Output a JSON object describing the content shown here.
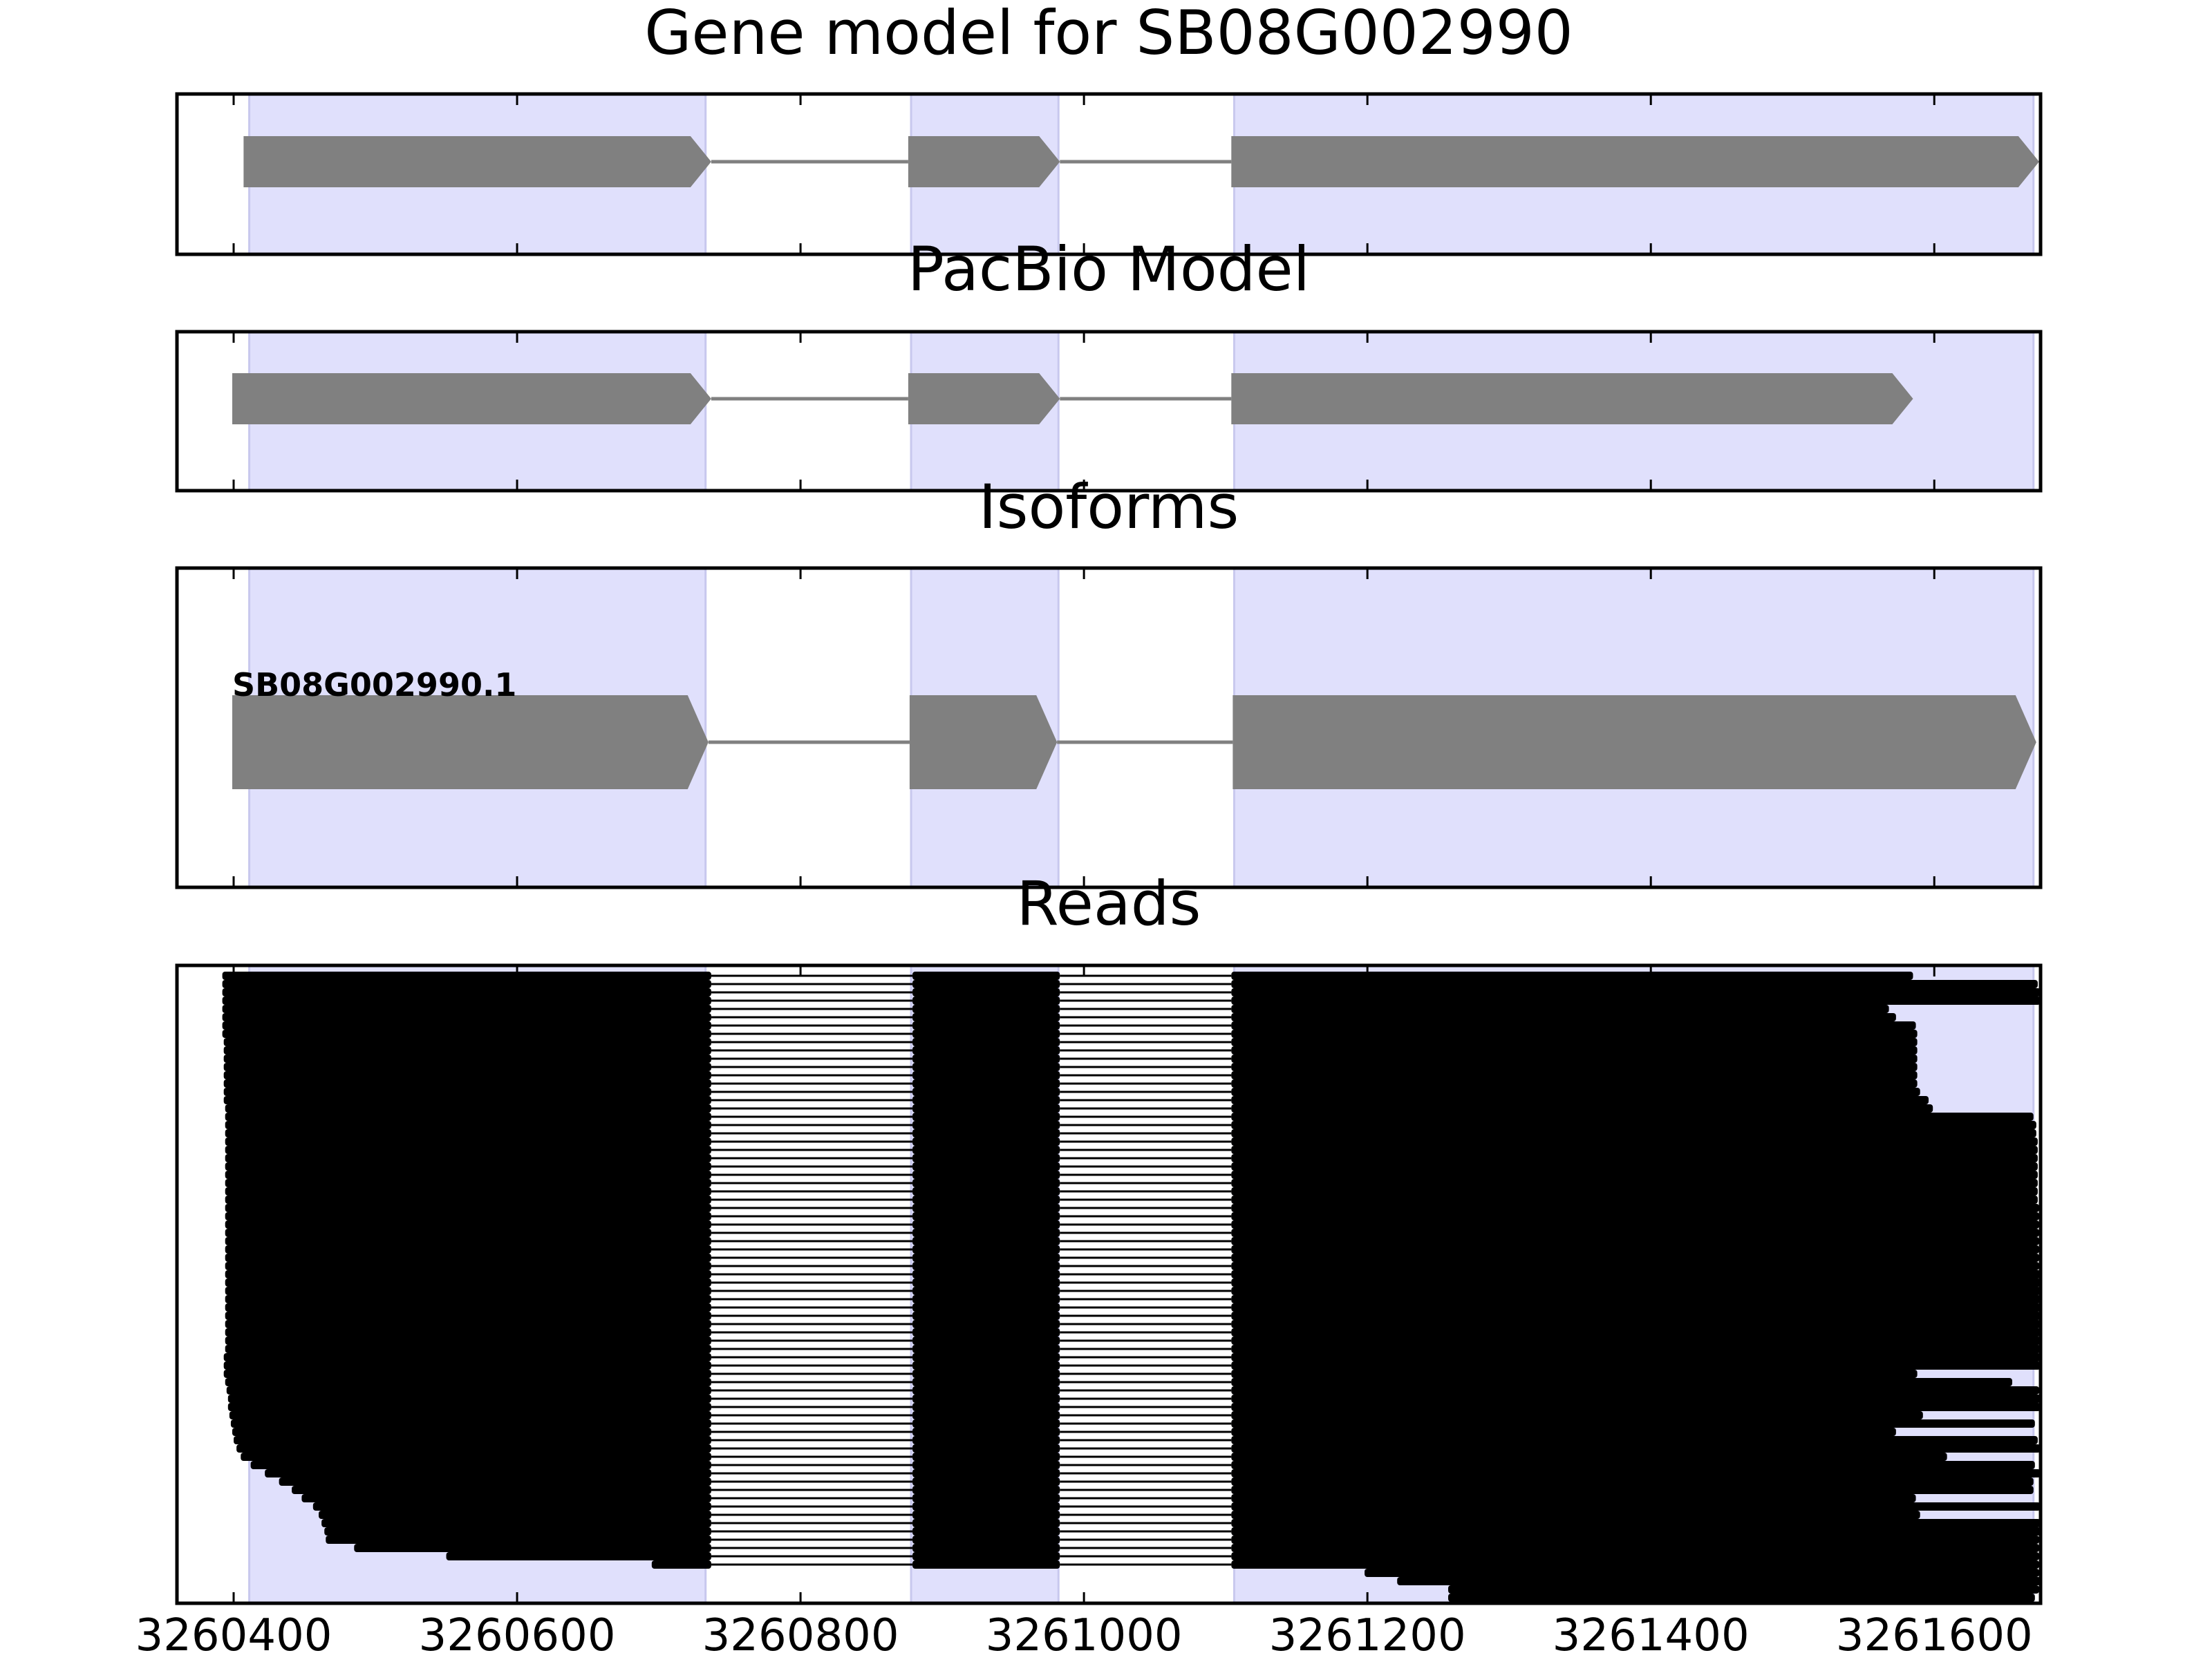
{
  "colors": {
    "exon_band": "#e0e0fc",
    "band_edge": "#c8c8ee",
    "gene_block": "#808080",
    "intron_line": "#808080",
    "read": "#000000",
    "axis": "#000000",
    "background": "#ffffff"
  },
  "chart_data": {
    "type": "gene-model track plot",
    "x_axis": {
      "range": [
        3260360,
        3261675
      ],
      "ticks": [
        3260400,
        3260600,
        3260800,
        3261000,
        3261200,
        3261400,
        3261600
      ],
      "tick_labels": [
        "3260400",
        "3260600",
        "3260800",
        "3261000",
        "3261200",
        "3261400",
        "3261600"
      ]
    },
    "exon_bands": [
      [
        3260411,
        3260733
      ],
      [
        3260878,
        3260982
      ],
      [
        3261106,
        3261670
      ]
    ],
    "panels": [
      {
        "key": "gene_model",
        "title": "Gene model for SB08G002990",
        "features": [
          {
            "start": 3260407,
            "end": 3260737,
            "strand": "+"
          },
          {
            "start": 3260876,
            "end": 3260983,
            "strand": "+"
          },
          {
            "start": 3261104,
            "end": 3261674,
            "strand": "+"
          }
        ]
      },
      {
        "key": "pacbio_model",
        "title": "PacBio Model",
        "features": [
          {
            "start": 3260399,
            "end": 3260737,
            "strand": "+"
          },
          {
            "start": 3260876,
            "end": 3260983,
            "strand": "+"
          },
          {
            "start": 3261104,
            "end": 3261585,
            "strand": "+"
          }
        ]
      },
      {
        "key": "isoforms",
        "title": "Isoforms",
        "isoforms": [
          {
            "name": "SB08G002990.1",
            "features": [
              {
                "start": 3260399,
                "end": 3260735,
                "strand": "+"
              },
              {
                "start": 3260877,
                "end": 3260981,
                "strand": "+"
              },
              {
                "start": 3261105,
                "end": 3261672,
                "strand": "+"
              }
            ]
          }
        ]
      },
      {
        "key": "reads",
        "title": "Reads",
        "reads": {
          "introns": [
            [
              3260737,
              3260879
            ],
            [
              3260983,
              3261104
            ]
          ],
          "starts": [
            3260392,
            3260392,
            3260392,
            3260392,
            3260392,
            3260392,
            3260392,
            3260392,
            3260393,
            3260393,
            3260393,
            3260393,
            3260393,
            3260393,
            3260393,
            3260393,
            3260394,
            3260394,
            3260394,
            3260394,
            3260394,
            3260394,
            3260394,
            3260394,
            3260394,
            3260394,
            3260394,
            3260394,
            3260394,
            3260394,
            3260394,
            3260394,
            3260394,
            3260394,
            3260394,
            3260394,
            3260394,
            3260394,
            3260394,
            3260394,
            3260394,
            3260394,
            3260394,
            3260394,
            3260394,
            3260394,
            3260393,
            3260393,
            3260393,
            3260394,
            3260395,
            3260396,
            3260396,
            3260397,
            3260398,
            3260399,
            3260400,
            3260402,
            3260405,
            3260412,
            3260422,
            3260432,
            3260441,
            3260448,
            3260456,
            3260460,
            3260462,
            3260464,
            3260465,
            3260485,
            3260550,
            3260695
          ],
          "ends": [
            3261585,
            3261673,
            3261675,
            3261675,
            3261568,
            3261573,
            3261587,
            3261588,
            3261588,
            3261588,
            3261588,
            3261588,
            3261588,
            3261588,
            3261590,
            3261596,
            3261599,
            3261670,
            3261672,
            3261672,
            3261673,
            3261673,
            3261673,
            3261673,
            3261673,
            3261673,
            3261673,
            3261673,
            3261674,
            3261674,
            3261674,
            3261674,
            3261674,
            3261674,
            3261674,
            3261674,
            3261675,
            3261675,
            3261675,
            3261675,
            3261675,
            3261675,
            3261675,
            3261675,
            3261675,
            3261675,
            3261700,
            3261700,
            3261588,
            3261655,
            3261674,
            3261676,
            3261676,
            3261592,
            3261671,
            3261573,
            3261673,
            3261676,
            3261609,
            3261671,
            3261700,
            3261670,
            3261670,
            3261587,
            3261676,
            3261590,
            3261675,
            3261675,
            3261674,
            3261674,
            3261674,
            3261674
          ],
          "late_reads": [
            [
              3261198,
              3261674
            ],
            [
              3261221,
              3261675
            ],
            [
              3261257,
              3261674
            ],
            [
              3261257,
              3261671
            ]
          ]
        }
      }
    ]
  }
}
